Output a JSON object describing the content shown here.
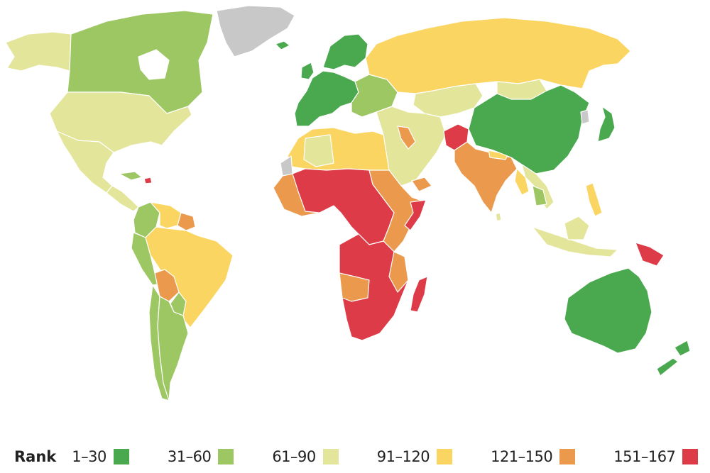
{
  "legend": {
    "title": "Rank",
    "items": [
      {
        "label": "1–30",
        "color": "#4aa84f"
      },
      {
        "label": "31–60",
        "color": "#9dc763"
      },
      {
        "label": "61–90",
        "color": "#e3e59a"
      },
      {
        "label": "91–120",
        "color": "#fbd562"
      },
      {
        "label": "121–150",
        "color": "#eb9a4d"
      },
      {
        "label": "151–167",
        "color": "#dc3b47"
      }
    ],
    "no_data_color": "#c8c8c8"
  },
  "regions": [
    {
      "name": "greenland",
      "rank_band": "no-data"
    },
    {
      "name": "alaska",
      "rank_band": "61–90"
    },
    {
      "name": "canada",
      "rank_band": "31–60"
    },
    {
      "name": "united-states",
      "rank_band": "61–90"
    },
    {
      "name": "mexico",
      "rank_band": "61–90"
    },
    {
      "name": "central-america",
      "rank_band": "61–90"
    },
    {
      "name": "colombia",
      "rank_band": "31–60"
    },
    {
      "name": "venezuela",
      "rank_band": "91–120"
    },
    {
      "name": "guianas",
      "rank_band": "121–150"
    },
    {
      "name": "peru",
      "rank_band": "31–60"
    },
    {
      "name": "brazil",
      "rank_band": "91–120"
    },
    {
      "name": "bolivia",
      "rank_band": "121–150"
    },
    {
      "name": "chile",
      "rank_band": "31–60"
    },
    {
      "name": "argentina",
      "rank_band": "31–60"
    },
    {
      "name": "western-europe",
      "rank_band": "1–30"
    },
    {
      "name": "scandinavia",
      "rank_band": "1–30"
    },
    {
      "name": "eastern-europe",
      "rank_band": "31–60"
    },
    {
      "name": "russia",
      "rank_band": "91–120"
    },
    {
      "name": "central-asia",
      "rank_band": "61–90"
    },
    {
      "name": "middle-east",
      "rank_band": "61–90"
    },
    {
      "name": "afghanistan",
      "rank_band": "151–167"
    },
    {
      "name": "south-asia",
      "rank_band": "121–150"
    },
    {
      "name": "china",
      "rank_band": "1–30"
    },
    {
      "name": "mongolia",
      "rank_band": "61–90"
    },
    {
      "name": "japan",
      "rank_band": "1–30"
    },
    {
      "name": "southeast-asia",
      "rank_band": "61–90"
    },
    {
      "name": "north-africa",
      "rank_band": "91–120"
    },
    {
      "name": "west-africa",
      "rank_band": "121–150"
    },
    {
      "name": "central-africa",
      "rank_band": "151–167"
    },
    {
      "name": "east-africa",
      "rank_band": "121–150"
    },
    {
      "name": "southern-africa",
      "rank_band": "151–167"
    },
    {
      "name": "madagascar",
      "rank_band": "151–167"
    },
    {
      "name": "papua-new-guinea",
      "rank_band": "151–167"
    },
    {
      "name": "australia",
      "rank_band": "1–30"
    },
    {
      "name": "new-zealand",
      "rank_band": "1–30"
    }
  ]
}
